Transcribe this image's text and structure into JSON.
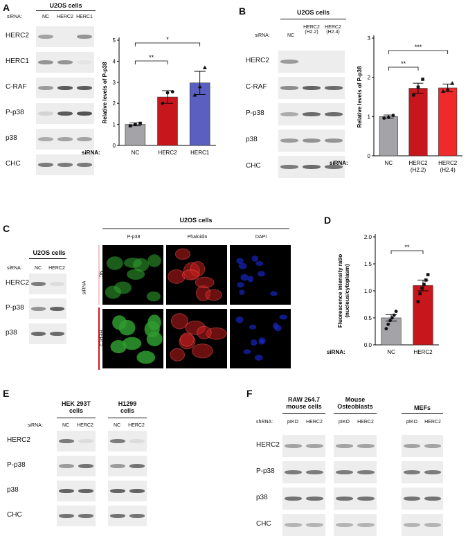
{
  "panels": {
    "A": "A",
    "B": "B",
    "C": "C",
    "D": "D",
    "E": "E",
    "F": "F"
  },
  "panel_a": {
    "cell_title": "U2OS cells",
    "sirna_label": "siRNA:",
    "lanes": [
      "NC",
      "HERC2",
      "HERC1"
    ],
    "rows": [
      "HERC2",
      "HERC1",
      "C-RAF",
      "P-p38",
      "p38",
      "CHC"
    ]
  },
  "panel_b": {
    "cell_title": "U2OS cells",
    "sirna_label": "siRNA:",
    "lanes": [
      "NC",
      "HERC2\n(H2.2)",
      "HERC2\n(H2.4)"
    ],
    "rows": [
      "HERC2",
      "C-RAF",
      "P-p38",
      "p38",
      "CHC"
    ]
  },
  "panel_c": {
    "cell_title": "U2OS cells",
    "sirna_label": "siRNA:",
    "lanes": [
      "NC",
      "HERC2"
    ],
    "rows": [
      "HERC2",
      "P-p38",
      "p38"
    ],
    "micro_title": "U2OS cells",
    "stains": [
      "P-p38",
      "Phaloidin",
      "DAPI"
    ],
    "side_label": "siRNA",
    "conditions": [
      "NC",
      "HERC2"
    ],
    "colors": {
      "p_p38": "#2f9b2f",
      "phaloidin": "#c41e1e",
      "dapi": "#1a2be0"
    }
  },
  "panel_e": {
    "sirna_label": "siRNA:",
    "groups": [
      "HEK 293T\ncells",
      "H1299\ncells"
    ],
    "lanes": [
      "NC",
      "HERC2",
      "NC",
      "HERC2"
    ],
    "rows": [
      "HERC2",
      "P-p38",
      "p38",
      "CHC"
    ]
  },
  "panel_f": {
    "shrna_label": "shRNA:",
    "groups": [
      "RAW 264.7\nmouse cells",
      "Mouse\nOsteoblasts",
      "MEFs"
    ],
    "lanes": [
      "pIKO",
      "HERC2",
      "pIKO",
      "HERC2",
      "pIKO",
      "HERC2"
    ],
    "rows": [
      "HERC2",
      "P-p38",
      "p38",
      "CHC"
    ]
  },
  "chart_data": [
    {
      "panel": "A",
      "type": "bar",
      "ylabel": "Relative levels of P-p38",
      "xaxis_prefix": "siRNA:",
      "categories": [
        "NC",
        "HERC2",
        "HERC1"
      ],
      "values": [
        1.0,
        2.3,
        2.97
      ],
      "errors": [
        0.07,
        0.3,
        0.55
      ],
      "colors": [
        "#a3a3a8",
        "#c8161d",
        "#5a5fc0"
      ],
      "points": [
        [
          0.93,
          1.0,
          1.05
        ],
        [
          2.0,
          2.5,
          2.55
        ],
        [
          2.4,
          2.8,
          3.7
        ]
      ],
      "point_markers": [
        "square",
        "circle",
        "triangle"
      ],
      "ylim": [
        0,
        5
      ],
      "yticks": [
        0,
        1,
        2,
        3,
        4,
        5
      ],
      "significance": [
        {
          "from": 0,
          "to": 1,
          "label": "**"
        },
        {
          "from": 0,
          "to": 2,
          "label": "*"
        }
      ]
    },
    {
      "panel": "B",
      "type": "bar",
      "ylabel": "Relative levels of P-p38",
      "xaxis_prefix": "siRNA:",
      "categories": [
        "NC",
        "HERC2\n(H2.2)",
        "HERC2\n(H2.4)"
      ],
      "values": [
        1.0,
        1.72,
        1.73
      ],
      "errors": [
        0.04,
        0.13,
        0.1
      ],
      "colors": [
        "#a3a3a8",
        "#c8161d",
        "#ef2a2a"
      ],
      "points": [
        [
          0.96,
          0.98,
          1.03
        ],
        [
          1.55,
          1.75,
          1.95
        ],
        [
          1.65,
          1.7,
          1.85
        ]
      ],
      "point_markers": [
        "circle",
        "square",
        "triangle"
      ],
      "ylim": [
        0,
        3
      ],
      "yticks": [
        0,
        1,
        2,
        3
      ],
      "significance": [
        {
          "from": 0,
          "to": 1,
          "label": "**"
        },
        {
          "from": 0,
          "to": 2,
          "label": "***"
        }
      ]
    },
    {
      "panel": "D",
      "type": "bar",
      "ylabel": "Fluorescence intensity ratio\n(nucleus/cytoplasm)",
      "xaxis_prefix": "siRNA:",
      "categories": [
        "NC",
        "HERC2"
      ],
      "values": [
        0.5,
        1.1
      ],
      "errors": [
        0.06,
        0.1
      ],
      "colors": [
        "#a3a3a8",
        "#c8161d"
      ],
      "points": [
        [
          0.3,
          0.38,
          0.45,
          0.5,
          0.55,
          0.62
        ],
        [
          0.8,
          0.95,
          1.05,
          1.12,
          1.2,
          1.3
        ]
      ],
      "point_markers": [
        "circle",
        "square"
      ],
      "ylim": [
        0,
        2.0
      ],
      "yticks": [
        0.0,
        0.5,
        1.0,
        1.5,
        2.0
      ],
      "significance": [
        {
          "from": 0,
          "to": 1,
          "label": "**"
        }
      ]
    }
  ]
}
